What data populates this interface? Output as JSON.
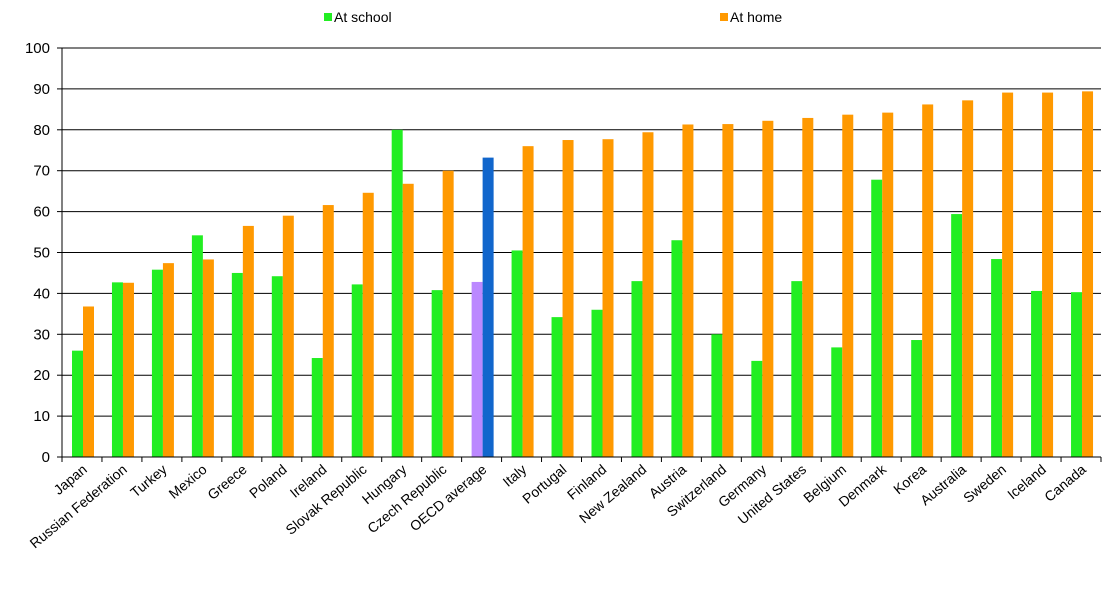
{
  "chart_data": {
    "type": "bar",
    "ylim": [
      0,
      100
    ],
    "yticks": [
      0,
      10,
      20,
      30,
      40,
      50,
      60,
      70,
      80,
      90,
      100
    ],
    "grid": true,
    "legend_position": "top",
    "categories": [
      "Japan",
      "Russian Federation",
      "Turkey",
      "Mexico",
      "Greece",
      "Poland",
      "Ireland",
      "Slovak Republic",
      "Hungary",
      "Czech Republic",
      "OECD average",
      "Italy",
      "Portugal",
      "Finland",
      "New Zealand",
      "Austria",
      "Switzerland",
      "Germany",
      "United States",
      "Belgium",
      "Denmark",
      "Korea",
      "Australia",
      "Sweden",
      "Iceland",
      "Canada"
    ],
    "highlight_category": "OECD average",
    "series": [
      {
        "name": "At school",
        "color": "#22ee22",
        "highlight_color": "#bb88ff",
        "values": [
          26.0,
          42.7,
          45.8,
          54.2,
          45.0,
          44.2,
          24.2,
          42.2,
          80.0,
          40.8,
          42.8,
          50.5,
          34.2,
          36.0,
          43.0,
          53.0,
          30.0,
          23.5,
          43.0,
          26.8,
          67.8,
          28.6,
          59.4,
          48.4,
          40.6,
          40.3
        ]
      },
      {
        "name": "At home",
        "color": "#ff9900",
        "highlight_color": "#1166cc",
        "values": [
          36.8,
          42.6,
          47.4,
          48.3,
          56.5,
          59.0,
          61.6,
          64.6,
          66.8,
          70.0,
          73.2,
          76.0,
          77.5,
          77.7,
          79.4,
          81.3,
          81.4,
          82.2,
          82.9,
          83.7,
          84.2,
          86.2,
          87.2,
          89.1,
          89.1,
          89.4
        ]
      }
    ]
  }
}
